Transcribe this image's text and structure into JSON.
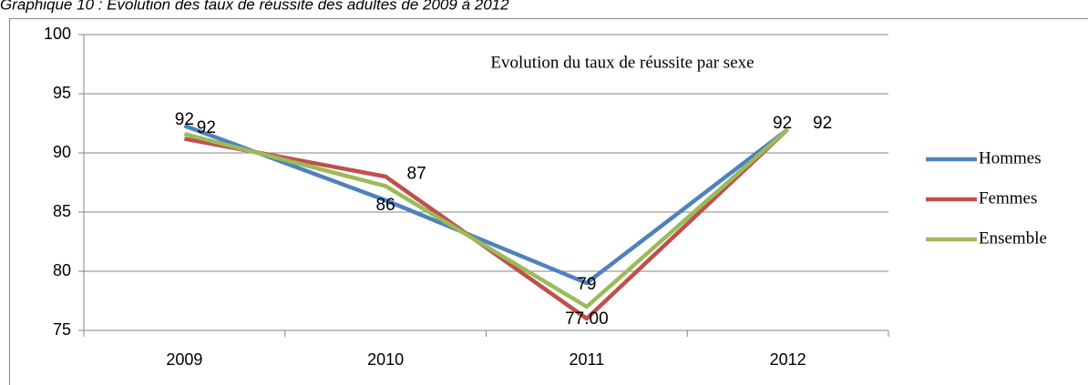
{
  "chart_data": {
    "type": "line",
    "caption": "Graphique 10 : Evolution des taux de réussite des adultes de 2009 à 2012",
    "title": "Evolution  du taux de réussite par  sexe",
    "categories": [
      "2009",
      "2010",
      "2011",
      "2012"
    ],
    "series": [
      {
        "name": "Hommes",
        "color": "#4f81bd",
        "values": [
          92.3,
          86,
          79,
          92
        ],
        "value_labels": [
          "92",
          "86",
          "79",
          "92"
        ]
      },
      {
        "name": "Femmes",
        "color": "#c0504d",
        "values": [
          91.2,
          88,
          76,
          92
        ]
      },
      {
        "name": "Ensemble",
        "color": "#9bbb59",
        "values": [
          91.6,
          87.2,
          77,
          92
        ],
        "value_labels": [
          "92",
          "87",
          "77.00",
          "92"
        ]
      }
    ],
    "ylim": [
      75,
      100
    ],
    "yticks": [
      75,
      80,
      85,
      90,
      95,
      100
    ],
    "grid": true,
    "legend": "right"
  }
}
